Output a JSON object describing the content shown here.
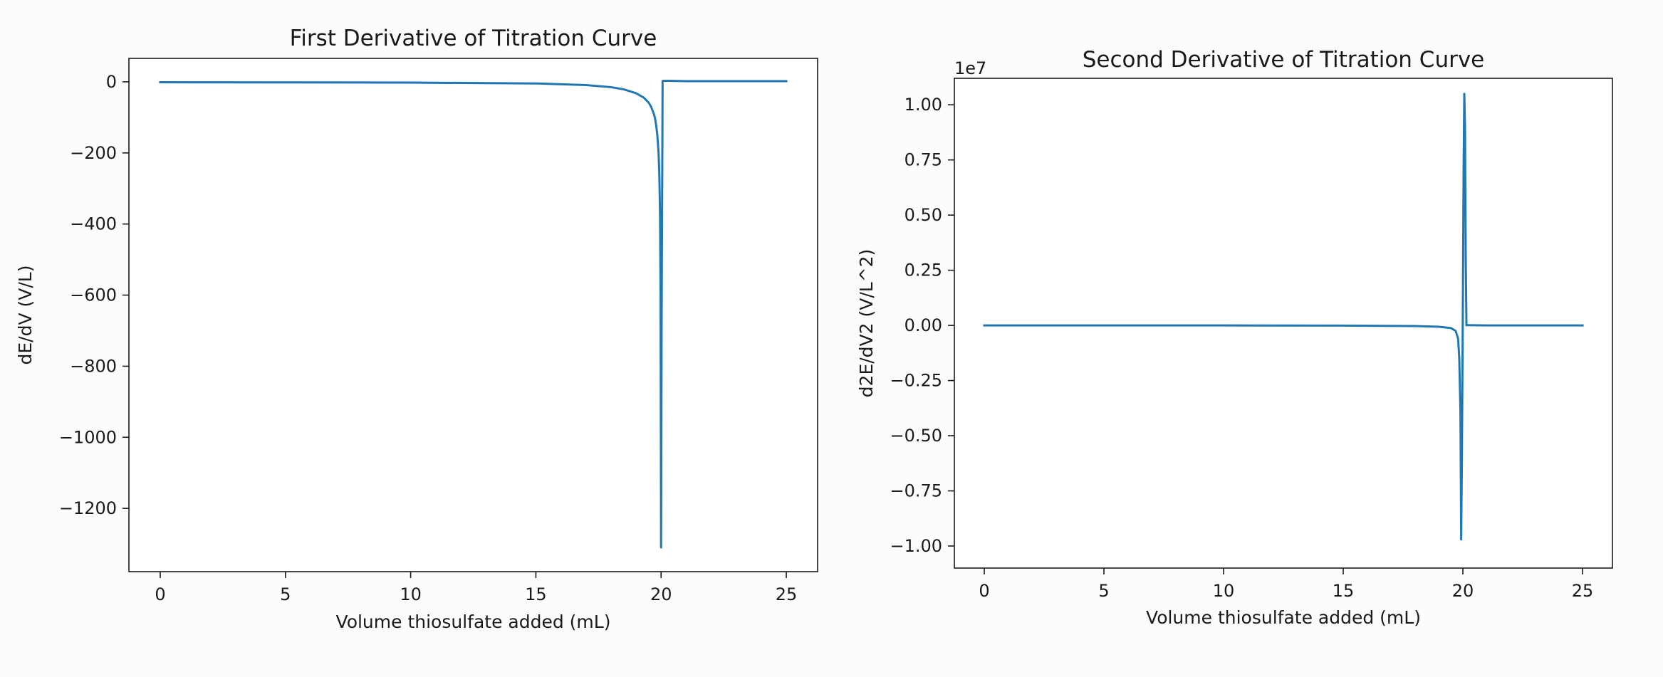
{
  "chart_data": [
    {
      "type": "line",
      "title": "First Derivative of Titration Curve",
      "xlabel": "Volume thiosulfate added (mL)",
      "ylabel": "dE/dV (V/L)",
      "xlim": [
        -1.25,
        26.25
      ],
      "ylim": [
        -1378,
        66
      ],
      "offset_text": "",
      "x_ticks": [
        0,
        5,
        10,
        15,
        20,
        25
      ],
      "x_tick_labels": [
        "0",
        "5",
        "10",
        "15",
        "20",
        "25"
      ],
      "y_ticks": [
        0,
        -200,
        -400,
        -600,
        -800,
        -1000,
        -1200
      ],
      "y_tick_labels": [
        "0",
        "−200",
        "−400",
        "−600",
        "−800",
        "−1000",
        "−1200"
      ],
      "grid": false,
      "series": [
        {
          "color": "#1f77b4",
          "x": [
            0,
            5,
            10,
            15,
            17,
            18,
            18.5,
            19,
            19.3,
            19.5,
            19.6,
            19.7,
            19.75,
            19.8,
            19.85,
            19.9,
            19.93,
            19.96,
            19.98,
            20.0,
            20.02,
            20.05,
            20.06,
            20.08,
            20.1,
            20.15,
            20.3,
            21,
            23,
            25
          ],
          "y": [
            -1.2,
            -1.6,
            -2.2,
            -4.5,
            -9,
            -15,
            -21,
            -32,
            -44,
            -58,
            -70,
            -88,
            -100,
            -120,
            -150,
            -200,
            -260,
            -380,
            -600,
            -1310,
            -700,
            -200,
            2,
            3,
            3,
            3,
            3,
            2,
            2,
            2
          ]
        }
      ]
    },
    {
      "type": "line",
      "title": "Second Derivative of Titration Curve",
      "xlabel": "Volume thiosulfate added (mL)",
      "ylabel": "d2E/dV2 (V/L^2)",
      "xlim": [
        -1.25,
        26.25
      ],
      "ylim": [
        -1.1,
        1.12
      ],
      "offset_text": "1e7",
      "x_ticks": [
        0,
        5,
        10,
        15,
        20,
        25
      ],
      "x_tick_labels": [
        "0",
        "5",
        "10",
        "15",
        "20",
        "25"
      ],
      "y_ticks": [
        1.0,
        0.75,
        0.5,
        0.25,
        0.0,
        -0.25,
        -0.5,
        -0.75,
        -1.0
      ],
      "y_tick_labels": [
        "1.00",
        "0.75",
        "0.50",
        "0.25",
        "0.00",
        "−0.25",
        "−0.50",
        "−0.75",
        "−1.00"
      ],
      "grid": false,
      "series": [
        {
          "color": "#1f77b4",
          "x": [
            0,
            10,
            15,
            18,
            19,
            19.5,
            19.7,
            19.8,
            19.85,
            19.9,
            19.93,
            19.96,
            20.0,
            20.03,
            20.06,
            20.09,
            20.12,
            20.15,
            20.18,
            20.22,
            21,
            25
          ],
          "y": [
            0.0,
            0.0,
            -0.001,
            -0.003,
            -0.006,
            -0.012,
            -0.025,
            -0.06,
            -0.15,
            -0.4,
            -0.97,
            -0.6,
            0.1,
            0.7,
            1.05,
            0.9,
            0.3,
            0.0,
            0.002,
            0.001,
            0.0,
            0.0
          ]
        }
      ]
    }
  ]
}
